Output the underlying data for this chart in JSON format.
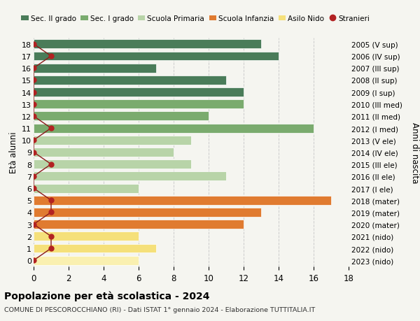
{
  "ages": [
    18,
    17,
    16,
    15,
    14,
    13,
    12,
    11,
    10,
    9,
    8,
    7,
    6,
    5,
    4,
    3,
    2,
    1,
    0
  ],
  "values": [
    13,
    14,
    7,
    11,
    12,
    12,
    10,
    16,
    9,
    8,
    9,
    11,
    6,
    17,
    13,
    12,
    6,
    7,
    6
  ],
  "stranieri_vals": [
    0,
    1,
    0,
    0,
    0,
    0,
    0,
    1,
    0,
    0,
    1,
    0,
    0,
    1,
    1,
    0,
    1,
    1,
    0
  ],
  "right_labels": [
    "2005 (V sup)",
    "2006 (IV sup)",
    "2007 (III sup)",
    "2008 (II sup)",
    "2009 (I sup)",
    "2010 (III med)",
    "2011 (II med)",
    "2012 (I med)",
    "2013 (V ele)",
    "2014 (IV ele)",
    "2015 (III ele)",
    "2016 (II ele)",
    "2017 (I ele)",
    "2018 (mater)",
    "2019 (mater)",
    "2020 (mater)",
    "2021 (nido)",
    "2022 (nido)",
    "2023 (nido)"
  ],
  "bar_colors": [
    "#4a7c59",
    "#4a7c59",
    "#4a7c59",
    "#4a7c59",
    "#4a7c59",
    "#7aab6e",
    "#7aab6e",
    "#7aab6e",
    "#b8d4a8",
    "#b8d4a8",
    "#b8d4a8",
    "#b8d4a8",
    "#b8d4a8",
    "#e07b30",
    "#e07b30",
    "#e07b30",
    "#f5e07a",
    "#f5e07a",
    "#faf0b0"
  ],
  "legend_labels": [
    "Sec. II grado",
    "Sec. I grado",
    "Scuola Primaria",
    "Scuola Infanzia",
    "Asilo Nido",
    "Stranieri"
  ],
  "legend_colors": [
    "#4a7c59",
    "#7aab6e",
    "#b8d4a8",
    "#e07b30",
    "#f5e07a",
    "#b22222"
  ],
  "title": "Popolazione per età scolastica - 2024",
  "subtitle": "COMUNE DI PESCOROCCHIANO (RI) - Dati ISTAT 1° gennaio 2024 - Elaborazione TUTTITALIA.IT",
  "ylabel_left": "Età alunni",
  "ylabel_right": "Anni di nascita",
  "xlim": [
    0,
    18
  ],
  "background_color": "#f5f5f0",
  "grid_color": "#cccccc",
  "stranieri_color": "#b22222",
  "stranieri_line_color": "#8b1a1a"
}
